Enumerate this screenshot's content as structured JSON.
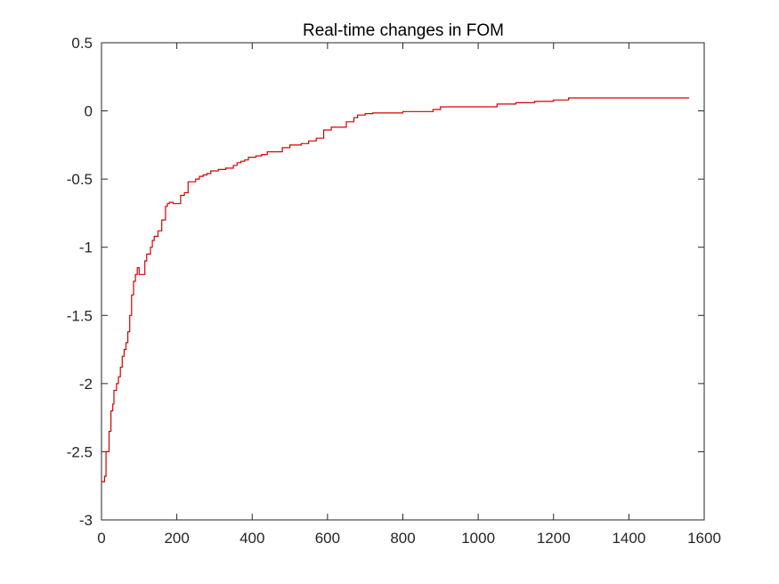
{
  "chart_data": {
    "type": "line",
    "title": "Real-time changes in FOM",
    "xlabel": "",
    "ylabel": "",
    "xlim": [
      0,
      1600
    ],
    "ylim": [
      -3,
      0.5
    ],
    "xticks": [
      0,
      200,
      400,
      600,
      800,
      1000,
      1200,
      1400,
      1600
    ],
    "yticks": [
      -3,
      -2.5,
      -2,
      -1.5,
      -1,
      -0.5,
      0,
      0.5
    ],
    "xtick_labels": [
      "0",
      "200",
      "400",
      "600",
      "800",
      "1000",
      "1200",
      "1400",
      "1600"
    ],
    "ytick_labels": [
      "-3",
      "-2.5",
      "-2",
      "-1.5",
      "-1",
      "-0.5",
      "0",
      "0.5"
    ],
    "grid": false,
    "line_color": "#d40000",
    "series": [
      {
        "step": true,
        "x": [
          0,
          8,
          12,
          20,
          25,
          30,
          33,
          40,
          45,
          50,
          55,
          60,
          65,
          70,
          75,
          80,
          85,
          90,
          95,
          100,
          115,
          120,
          130,
          135,
          140,
          150,
          160,
          170,
          175,
          180,
          190,
          210,
          220,
          230,
          250,
          260,
          270,
          280,
          290,
          310,
          330,
          350,
          360,
          370,
          380,
          390,
          410,
          425,
          440,
          480,
          500,
          530,
          550,
          570,
          590,
          610,
          650,
          670,
          680,
          700,
          720,
          800,
          880,
          900,
          1050,
          1100,
          1150,
          1200,
          1240,
          1560
        ],
        "y": [
          -2.72,
          -2.68,
          -2.5,
          -2.35,
          -2.2,
          -2.15,
          -2.05,
          -2.0,
          -1.95,
          -1.88,
          -1.8,
          -1.75,
          -1.7,
          -1.62,
          -1.5,
          -1.35,
          -1.25,
          -1.2,
          -1.15,
          -1.2,
          -1.1,
          -1.05,
          -1.0,
          -0.95,
          -0.92,
          -0.88,
          -0.8,
          -0.7,
          -0.68,
          -0.67,
          -0.68,
          -0.62,
          -0.6,
          -0.52,
          -0.5,
          -0.48,
          -0.47,
          -0.46,
          -0.44,
          -0.43,
          -0.42,
          -0.4,
          -0.38,
          -0.37,
          -0.36,
          -0.34,
          -0.33,
          -0.32,
          -0.3,
          -0.27,
          -0.25,
          -0.24,
          -0.22,
          -0.2,
          -0.14,
          -0.12,
          -0.08,
          -0.05,
          -0.03,
          -0.02,
          -0.015,
          -0.005,
          0.01,
          0.03,
          0.05,
          0.06,
          0.07,
          0.08,
          0.095,
          0.095
        ]
      }
    ]
  }
}
